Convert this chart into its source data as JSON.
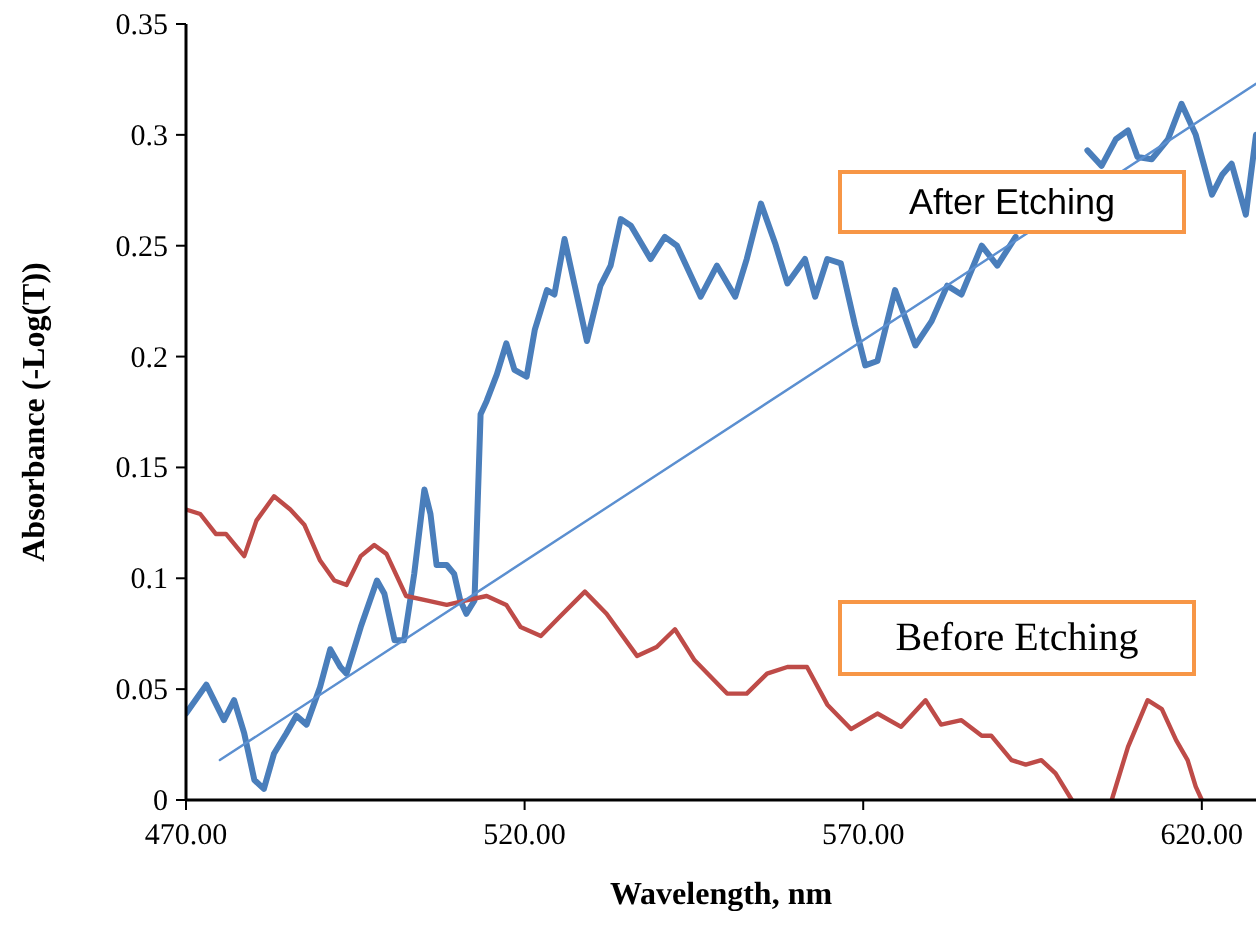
{
  "chart_data": {
    "type": "line",
    "xlabel": "Wavelength, nm",
    "ylabel": "Absorbance (-Log(T))",
    "xlim": [
      470,
      628
    ],
    "ylim": [
      0,
      0.35
    ],
    "xticks": [
      {
        "value": 470,
        "label": "470.00"
      },
      {
        "value": 520,
        "label": "520.00"
      },
      {
        "value": 570,
        "label": "570.00"
      },
      {
        "value": 620,
        "label": "620.00"
      }
    ],
    "yticks": [
      0,
      0.05,
      0.1,
      0.15,
      0.2,
      0.25,
      0.3,
      0.35
    ],
    "grid": false,
    "marker": "none",
    "line_style": "solid",
    "series": [
      {
        "name": "After Etching",
        "color": "#4a7ebb",
        "x": [
          470.0,
          473.0,
          475.6,
          477.1,
          478.6,
          480.1,
          481.5,
          483.0,
          484.8,
          486.3,
          487.8,
          489.8,
          491.3,
          492.8,
          493.7,
          495.8,
          498.2,
          499.3,
          500.8,
          502.2,
          503.7,
          505.2,
          506.1,
          507.0,
          508.5,
          509.6,
          510.5,
          511.4,
          512.6,
          513.5,
          514.4,
          515.9,
          517.3,
          518.5,
          520.3,
          521.5,
          523.3,
          524.4,
          525.9,
          527.4,
          529.2,
          531.2,
          532.7,
          534.2,
          535.7,
          538.6,
          540.7,
          542.5,
          546.0,
          548.4,
          551.1,
          552.8,
          554.9,
          557.0,
          558.8,
          561.4,
          562.9,
          564.7,
          566.7,
          568.8,
          570.3,
          572.1,
          574.7,
          577.7,
          580.1,
          582.4,
          584.5,
          587.5,
          589.8,
          592.5,
          594.9,
          597.2,
          600.2,
          603.1,
          605.2,
          607.3,
          609.1,
          610.5,
          612.6,
          615.0,
          617.0,
          619.1,
          621.5,
          623.0,
          624.4,
          626.5,
          628.0
        ],
        "values": [
          0.039,
          0.052,
          0.036,
          0.045,
          0.03,
          0.009,
          0.005,
          0.021,
          0.03,
          0.038,
          0.034,
          0.051,
          0.068,
          0.06,
          0.057,
          0.078,
          0.099,
          0.093,
          0.072,
          0.072,
          0.102,
          0.14,
          0.129,
          0.106,
          0.106,
          0.102,
          0.09,
          0.084,
          0.09,
          0.174,
          0.18,
          0.192,
          0.206,
          0.194,
          0.191,
          0.212,
          0.23,
          0.228,
          0.253,
          0.232,
          0.207,
          0.232,
          0.241,
          0.262,
          0.259,
          0.244,
          0.254,
          0.25,
          0.227,
          0.241,
          0.227,
          0.244,
          0.269,
          0.251,
          0.233,
          0.244,
          0.227,
          0.244,
          0.242,
          0.214,
          0.196,
          0.198,
          0.23,
          0.205,
          0.216,
          0.232,
          0.228,
          0.25,
          0.241,
          0.254,
          null,
          null,
          null,
          0.293,
          0.286,
          0.298,
          0.302,
          0.29,
          0.289,
          0.298,
          0.314,
          0.3,
          0.273,
          0.282,
          0.287,
          0.264,
          0.3
        ]
      },
      {
        "name": "Before Etching",
        "color": "#be4b48",
        "x": [
          470.0,
          472.1,
          474.4,
          475.9,
          478.6,
          480.4,
          483.0,
          485.4,
          487.5,
          489.8,
          491.9,
          493.7,
          495.8,
          497.8,
          499.6,
          502.5,
          505.5,
          508.5,
          511.4,
          514.4,
          517.3,
          519.4,
          522.4,
          525.3,
          528.9,
          532.1,
          536.6,
          539.5,
          542.2,
          545.1,
          549.9,
          552.8,
          555.8,
          558.8,
          561.7,
          564.7,
          568.2,
          572.1,
          575.6,
          579.2,
          581.5,
          584.5,
          587.5,
          588.9,
          591.9,
          594.0,
          596.3,
          598.4,
          600.8,
          604.0,
          606.7,
          609.1,
          612.0,
          614.1,
          616.2,
          617.9,
          619.1,
          620.0
        ],
        "values": [
          0.131,
          0.129,
          0.12,
          0.12,
          0.11,
          0.126,
          0.137,
          0.131,
          0.124,
          0.108,
          0.099,
          0.097,
          0.11,
          0.115,
          0.111,
          0.092,
          0.09,
          0.088,
          0.09,
          0.092,
          0.088,
          0.078,
          0.074,
          0.083,
          0.094,
          0.084,
          0.065,
          0.069,
          0.077,
          0.063,
          0.048,
          0.048,
          0.057,
          0.06,
          0.06,
          0.043,
          0.032,
          0.039,
          0.033,
          0.045,
          0.034,
          0.036,
          0.029,
          0.029,
          0.018,
          0.016,
          0.018,
          0.012,
          0.0,
          null,
          0.0,
          0.024,
          0.045,
          0.041,
          0.027,
          0.018,
          0.006,
          0.0
        ]
      },
      {
        "type": "line",
        "color": "#5b8fd0",
        "x": [
          475.0,
          628.0
        ],
        "values": [
          0.018,
          0.323
        ]
      }
    ]
  }
}
